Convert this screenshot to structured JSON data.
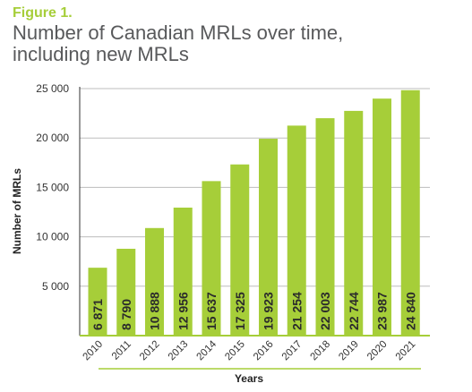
{
  "figure_label": "Figure 1.",
  "title_lines": [
    "Number of Canadian MRLs over time,",
    "including new MRLs"
  ],
  "colors": {
    "bar": "#a6ce39",
    "accent": "#a6ce39",
    "grid": "#bdbdbd",
    "axis": "#333333"
  },
  "chart_data": {
    "type": "bar",
    "title": "Number of Canadian MRLs over time, including new MRLs",
    "xlabel": "Years",
    "ylabel": "Number of MRLs",
    "categories": [
      "2010",
      "2011",
      "2012",
      "2013",
      "2014",
      "2015",
      "2016",
      "2017",
      "2018",
      "2019",
      "2020",
      "2021"
    ],
    "values": [
      6871,
      8790,
      10888,
      12956,
      15637,
      17325,
      19923,
      21254,
      22003,
      22744,
      23987,
      24840
    ],
    "value_labels": [
      "6 871",
      "8 790",
      "10 888",
      "12 956",
      "15 637",
      "17 325",
      "19 923",
      "21 254",
      "22 003",
      "22 744",
      "23 987",
      "24 840"
    ],
    "yticks": [
      5000,
      10000,
      15000,
      20000,
      25000
    ],
    "ytick_labels": [
      "5 000",
      "10 000",
      "15 000",
      "20 000",
      "25 000"
    ],
    "ylim": [
      0,
      25000
    ],
    "grid": true,
    "legend": "none"
  }
}
